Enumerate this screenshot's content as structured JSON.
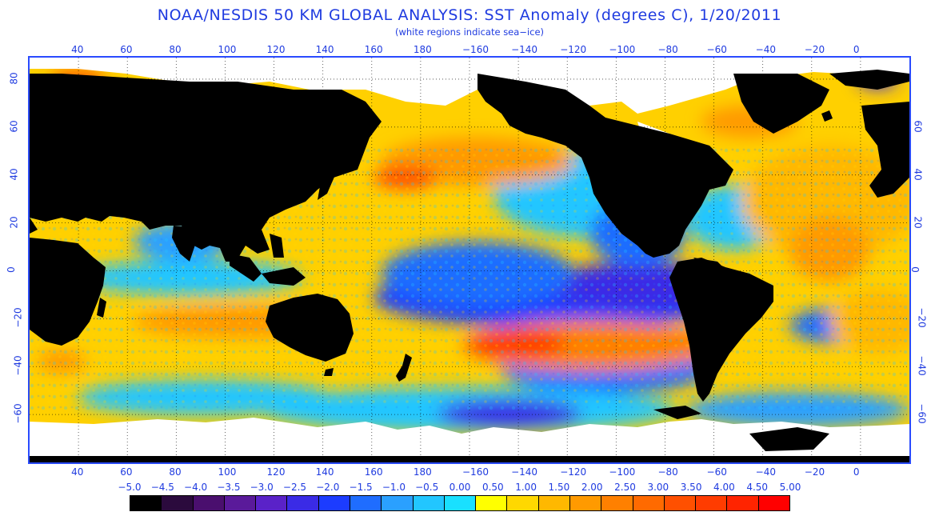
{
  "title": "NOAA/NESDIS 50 KM GLOBAL ANALYSIS: SST Anomaly (degrees C), 1/20/2011",
  "subtitle": "(white regions indicate sea−ice)",
  "map": {
    "top_lon_labels": [
      "40",
      "60",
      "80",
      "100",
      "120",
      "140",
      "160",
      "180",
      "−160",
      "−140",
      "−120",
      "−100",
      "−80",
      "−60",
      "−40",
      "−20",
      "0"
    ],
    "bottom_lon_labels": [
      "40",
      "60",
      "80",
      "100",
      "120",
      "140",
      "160",
      "180",
      "−160",
      "−140",
      "−120",
      "−100",
      "−80",
      "−60",
      "−40",
      "−20",
      "0"
    ],
    "left_lat_labels": [
      "80",
      "60",
      "40",
      "20",
      "0",
      "−20",
      "−40",
      "−60"
    ],
    "right_lat_labels": [
      "60",
      "40",
      "20",
      "0",
      "−20",
      "−40",
      "−60"
    ],
    "lon_range": [
      20,
      380
    ],
    "lat_range": [
      -80,
      89
    ]
  },
  "legend": {
    "labels": [
      "−5.0",
      "−4.5",
      "−4.0",
      "−3.5",
      "−3.0",
      "−2.5",
      "−2.0",
      "−1.5",
      "−1.0",
      "−0.5",
      "0.00",
      "0.50",
      "1.00",
      "1.50",
      "2.00",
      "2.50",
      "3.00",
      "3.50",
      "4.00",
      "4.50",
      "5.00"
    ],
    "colors": [
      "#000000",
      "#2b0a3d",
      "#4a0f6e",
      "#5a1a9a",
      "#5a22c8",
      "#3a2be6",
      "#1c3cff",
      "#1f6dff",
      "#2aa0ff",
      "#22c6ff",
      "#19e0ff",
      "#ffff00",
      "#ffd800",
      "#ffb800",
      "#ff9a00",
      "#ff8000",
      "#ff6a00",
      "#ff5000",
      "#ff3c00",
      "#ff2400",
      "#ff0000"
    ]
  },
  "colors": {
    "text": "#1f3be0",
    "frame": "#2a4bff",
    "land": "#000000",
    "sea_ice": "#ffffff",
    "cold_anomaly": "#1c3cff",
    "warm_anomaly": "#ffb800"
  }
}
